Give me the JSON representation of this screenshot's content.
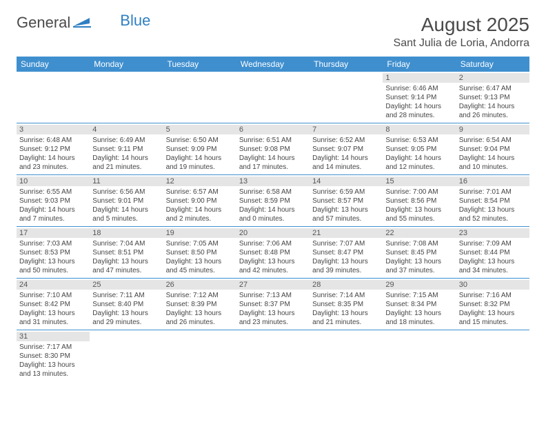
{
  "logo": {
    "text1": "General",
    "text2": "Blue"
  },
  "header": {
    "title": "August 2025",
    "location": "Sant Julia de Loria, Andorra"
  },
  "colors": {
    "header_bg": "#3f8fcf",
    "divider": "#3f8fcf",
    "daynum_bg": "#e5e5e5"
  },
  "daynames": [
    "Sunday",
    "Monday",
    "Tuesday",
    "Wednesday",
    "Thursday",
    "Friday",
    "Saturday"
  ],
  "weeks": [
    [
      null,
      null,
      null,
      null,
      null,
      {
        "n": "1",
        "sr": "6:46 AM",
        "ss": "9:14 PM",
        "dl": "14 hours and 28 minutes."
      },
      {
        "n": "2",
        "sr": "6:47 AM",
        "ss": "9:13 PM",
        "dl": "14 hours and 26 minutes."
      }
    ],
    [
      {
        "n": "3",
        "sr": "6:48 AM",
        "ss": "9:12 PM",
        "dl": "14 hours and 23 minutes."
      },
      {
        "n": "4",
        "sr": "6:49 AM",
        "ss": "9:11 PM",
        "dl": "14 hours and 21 minutes."
      },
      {
        "n": "5",
        "sr": "6:50 AM",
        "ss": "9:09 PM",
        "dl": "14 hours and 19 minutes."
      },
      {
        "n": "6",
        "sr": "6:51 AM",
        "ss": "9:08 PM",
        "dl": "14 hours and 17 minutes."
      },
      {
        "n": "7",
        "sr": "6:52 AM",
        "ss": "9:07 PM",
        "dl": "14 hours and 14 minutes."
      },
      {
        "n": "8",
        "sr": "6:53 AM",
        "ss": "9:05 PM",
        "dl": "14 hours and 12 minutes."
      },
      {
        "n": "9",
        "sr": "6:54 AM",
        "ss": "9:04 PM",
        "dl": "14 hours and 10 minutes."
      }
    ],
    [
      {
        "n": "10",
        "sr": "6:55 AM",
        "ss": "9:03 PM",
        "dl": "14 hours and 7 minutes."
      },
      {
        "n": "11",
        "sr": "6:56 AM",
        "ss": "9:01 PM",
        "dl": "14 hours and 5 minutes."
      },
      {
        "n": "12",
        "sr": "6:57 AM",
        "ss": "9:00 PM",
        "dl": "14 hours and 2 minutes."
      },
      {
        "n": "13",
        "sr": "6:58 AM",
        "ss": "8:59 PM",
        "dl": "14 hours and 0 minutes."
      },
      {
        "n": "14",
        "sr": "6:59 AM",
        "ss": "8:57 PM",
        "dl": "13 hours and 57 minutes."
      },
      {
        "n": "15",
        "sr": "7:00 AM",
        "ss": "8:56 PM",
        "dl": "13 hours and 55 minutes."
      },
      {
        "n": "16",
        "sr": "7:01 AM",
        "ss": "8:54 PM",
        "dl": "13 hours and 52 minutes."
      }
    ],
    [
      {
        "n": "17",
        "sr": "7:03 AM",
        "ss": "8:53 PM",
        "dl": "13 hours and 50 minutes."
      },
      {
        "n": "18",
        "sr": "7:04 AM",
        "ss": "8:51 PM",
        "dl": "13 hours and 47 minutes."
      },
      {
        "n": "19",
        "sr": "7:05 AM",
        "ss": "8:50 PM",
        "dl": "13 hours and 45 minutes."
      },
      {
        "n": "20",
        "sr": "7:06 AM",
        "ss": "8:48 PM",
        "dl": "13 hours and 42 minutes."
      },
      {
        "n": "21",
        "sr": "7:07 AM",
        "ss": "8:47 PM",
        "dl": "13 hours and 39 minutes."
      },
      {
        "n": "22",
        "sr": "7:08 AM",
        "ss": "8:45 PM",
        "dl": "13 hours and 37 minutes."
      },
      {
        "n": "23",
        "sr": "7:09 AM",
        "ss": "8:44 PM",
        "dl": "13 hours and 34 minutes."
      }
    ],
    [
      {
        "n": "24",
        "sr": "7:10 AM",
        "ss": "8:42 PM",
        "dl": "13 hours and 31 minutes."
      },
      {
        "n": "25",
        "sr": "7:11 AM",
        "ss": "8:40 PM",
        "dl": "13 hours and 29 minutes."
      },
      {
        "n": "26",
        "sr": "7:12 AM",
        "ss": "8:39 PM",
        "dl": "13 hours and 26 minutes."
      },
      {
        "n": "27",
        "sr": "7:13 AM",
        "ss": "8:37 PM",
        "dl": "13 hours and 23 minutes."
      },
      {
        "n": "28",
        "sr": "7:14 AM",
        "ss": "8:35 PM",
        "dl": "13 hours and 21 minutes."
      },
      {
        "n": "29",
        "sr": "7:15 AM",
        "ss": "8:34 PM",
        "dl": "13 hours and 18 minutes."
      },
      {
        "n": "30",
        "sr": "7:16 AM",
        "ss": "8:32 PM",
        "dl": "13 hours and 15 minutes."
      }
    ],
    [
      {
        "n": "31",
        "sr": "7:17 AM",
        "ss": "8:30 PM",
        "dl": "13 hours and 13 minutes."
      },
      null,
      null,
      null,
      null,
      null,
      null
    ]
  ],
  "labels": {
    "sunrise": "Sunrise: ",
    "sunset": "Sunset: ",
    "daylight": "Daylight: "
  }
}
